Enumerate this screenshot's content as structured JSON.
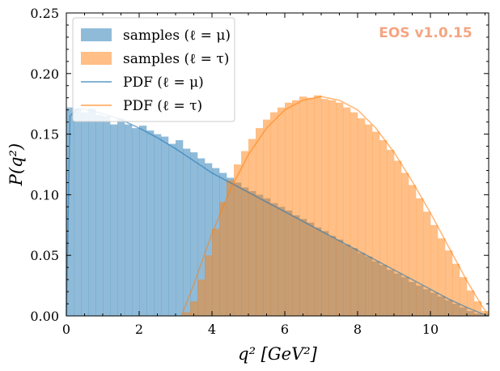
{
  "chart_data": {
    "type": "histogram+line",
    "xlabel": "q² [GeV²]",
    "ylabel": "P(q²)",
    "xlim": [
      0,
      11.6
    ],
    "ylim": [
      0,
      0.25
    ],
    "xticks": [
      0,
      2,
      4,
      6,
      8,
      10
    ],
    "xtick_labels": [
      "0",
      "2",
      "4",
      "6",
      "8",
      "10"
    ],
    "yticks": [
      0,
      0.05,
      0.1,
      0.15,
      0.2,
      0.25
    ],
    "ytick_labels": [
      "0.00",
      "0.05",
      "0.10",
      "0.15",
      "0.20",
      "0.25"
    ],
    "grid": false,
    "legend_position": "top-left",
    "watermark": "EOS v1.0.15",
    "watermark_color": "#f4a582",
    "colors": {
      "mu": "#1f77b4",
      "tau": "#ff7f0e"
    },
    "series": [
      {
        "name": "samples (ℓ = μ)",
        "type": "histogram",
        "color": "#1f77b4",
        "bin_edges": [
          0.0,
          0.2,
          0.4,
          0.6,
          0.8,
          1.0,
          1.2,
          1.4,
          1.6,
          1.8,
          2.0,
          2.2,
          2.4,
          2.6,
          2.8,
          3.0,
          3.2,
          3.4,
          3.6,
          3.8,
          4.0,
          4.2,
          4.4,
          4.6,
          4.8,
          5.0,
          5.2,
          5.4,
          5.6,
          5.8,
          6.0,
          6.2,
          6.4,
          6.6,
          6.8,
          7.0,
          7.2,
          7.4,
          7.6,
          7.8,
          8.0,
          8.2,
          8.4,
          8.6,
          8.8,
          9.0,
          9.2,
          9.4,
          9.6,
          9.8,
          10.0,
          10.2,
          10.4,
          10.6,
          10.8,
          11.0,
          11.2,
          11.4,
          11.6
        ],
        "values": [
          0.172,
          0.171,
          0.168,
          0.171,
          0.166,
          0.165,
          0.158,
          0.163,
          0.158,
          0.155,
          0.157,
          0.153,
          0.15,
          0.148,
          0.142,
          0.145,
          0.138,
          0.135,
          0.13,
          0.126,
          0.122,
          0.118,
          0.114,
          0.11,
          0.106,
          0.103,
          0.1,
          0.097,
          0.093,
          0.09,
          0.087,
          0.083,
          0.08,
          0.077,
          0.073,
          0.07,
          0.066,
          0.063,
          0.059,
          0.056,
          0.052,
          0.049,
          0.045,
          0.042,
          0.038,
          0.035,
          0.032,
          0.028,
          0.025,
          0.022,
          0.019,
          0.016,
          0.013,
          0.01,
          0.007,
          0.004,
          0.002,
          0.001
        ]
      },
      {
        "name": "samples (ℓ = τ)",
        "type": "histogram",
        "color": "#ff7f0e",
        "bin_edges": [
          3.2,
          3.4,
          3.6,
          3.8,
          4.0,
          4.2,
          4.4,
          4.6,
          4.8,
          5.0,
          5.2,
          5.4,
          5.6,
          5.8,
          6.0,
          6.2,
          6.4,
          6.6,
          6.8,
          7.0,
          7.2,
          7.4,
          7.6,
          7.8,
          8.0,
          8.2,
          8.4,
          8.6,
          8.8,
          9.0,
          9.2,
          9.4,
          9.6,
          9.8,
          10.0,
          10.2,
          10.4,
          10.6,
          10.8,
          11.0,
          11.2,
          11.4,
          11.6
        ],
        "values": [
          0.003,
          0.012,
          0.03,
          0.05,
          0.072,
          0.094,
          0.112,
          0.125,
          0.136,
          0.146,
          0.155,
          0.162,
          0.168,
          0.172,
          0.176,
          0.178,
          0.181,
          0.18,
          0.182,
          0.179,
          0.178,
          0.176,
          0.172,
          0.168,
          0.163,
          0.158,
          0.152,
          0.145,
          0.137,
          0.128,
          0.118,
          0.108,
          0.097,
          0.086,
          0.075,
          0.064,
          0.054,
          0.043,
          0.032,
          0.021,
          0.012,
          0.004
        ]
      },
      {
        "name": "PDF (ℓ = μ)",
        "type": "line",
        "color": "#1f77b4",
        "x": [
          0.0,
          0.1,
          0.3,
          0.6,
          1.0,
          1.5,
          2.0,
          2.5,
          3.0,
          3.5,
          4.0,
          4.5,
          5.0,
          5.5,
          6.0,
          6.5,
          7.0,
          7.5,
          8.0,
          8.5,
          9.0,
          9.5,
          10.0,
          10.5,
          11.0,
          11.4,
          11.6
        ],
        "y": [
          0.0,
          0.165,
          0.171,
          0.17,
          0.167,
          0.162,
          0.155,
          0.147,
          0.138,
          0.128,
          0.118,
          0.11,
          0.102,
          0.094,
          0.086,
          0.078,
          0.07,
          0.062,
          0.054,
          0.046,
          0.038,
          0.03,
          0.022,
          0.014,
          0.007,
          0.002,
          0.0
        ]
      },
      {
        "name": "PDF (ℓ = τ)",
        "type": "line",
        "color": "#ff7f0e",
        "x": [
          3.16,
          3.5,
          4.0,
          4.5,
          5.0,
          5.5,
          6.0,
          6.5,
          7.0,
          7.5,
          8.0,
          8.5,
          9.0,
          9.5,
          10.0,
          10.5,
          11.0,
          11.4,
          11.6
        ],
        "y": [
          0.0,
          0.026,
          0.068,
          0.104,
          0.133,
          0.155,
          0.17,
          0.178,
          0.181,
          0.178,
          0.17,
          0.155,
          0.135,
          0.111,
          0.085,
          0.057,
          0.029,
          0.009,
          0.0
        ]
      }
    ]
  }
}
